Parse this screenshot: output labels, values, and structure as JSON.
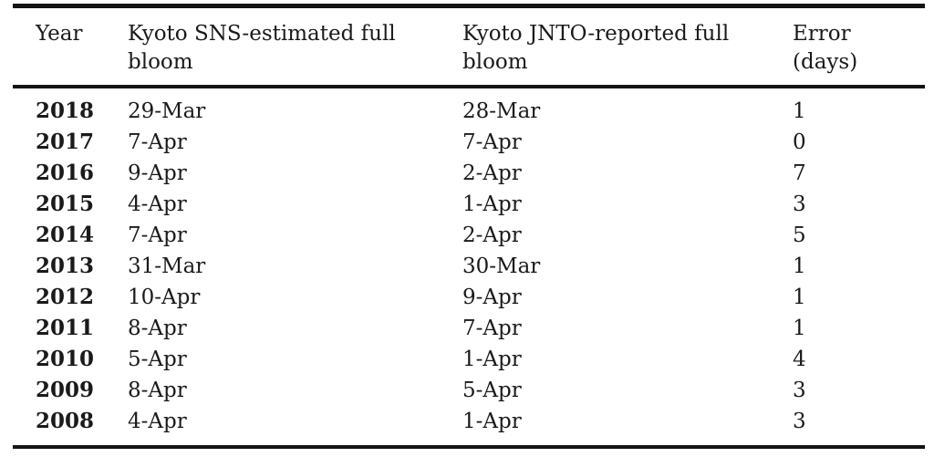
{
  "table": {
    "headers": {
      "year": "Year",
      "sns": "Kyoto SNS-estimated full\nbloom",
      "jnto": "Kyoto JNTO-reported full\nbloom",
      "error": "Error\n(days)"
    },
    "rows": [
      {
        "year": "2018",
        "sns": "29-Mar",
        "jnto": "28-Mar",
        "error": "1"
      },
      {
        "year": "2017",
        "sns": "7-Apr",
        "jnto": "7-Apr",
        "error": "0"
      },
      {
        "year": "2016",
        "sns": "9-Apr",
        "jnto": "2-Apr",
        "error": "7"
      },
      {
        "year": "2015",
        "sns": "4-Apr",
        "jnto": "1-Apr",
        "error": "3"
      },
      {
        "year": "2014",
        "sns": "7-Apr",
        "jnto": "2-Apr",
        "error": "5"
      },
      {
        "year": "2013",
        "sns": "31-Mar",
        "jnto": "30-Mar",
        "error": "1"
      },
      {
        "year": "2012",
        "sns": "10-Apr",
        "jnto": "9-Apr",
        "error": "1"
      },
      {
        "year": "2011",
        "sns": "8-Apr",
        "jnto": "7-Apr",
        "error": "1"
      },
      {
        "year": "2010",
        "sns": "5-Apr",
        "jnto": "1-Apr",
        "error": "4"
      },
      {
        "year": "2009",
        "sns": "8-Apr",
        "jnto": "5-Apr",
        "error": "3"
      },
      {
        "year": "2008",
        "sns": "4-Apr",
        "jnto": "1-Apr",
        "error": "3"
      }
    ],
    "colors": {
      "text": "#1a1a1a",
      "rule": "#141414",
      "background": "#ffffff"
    }
  }
}
